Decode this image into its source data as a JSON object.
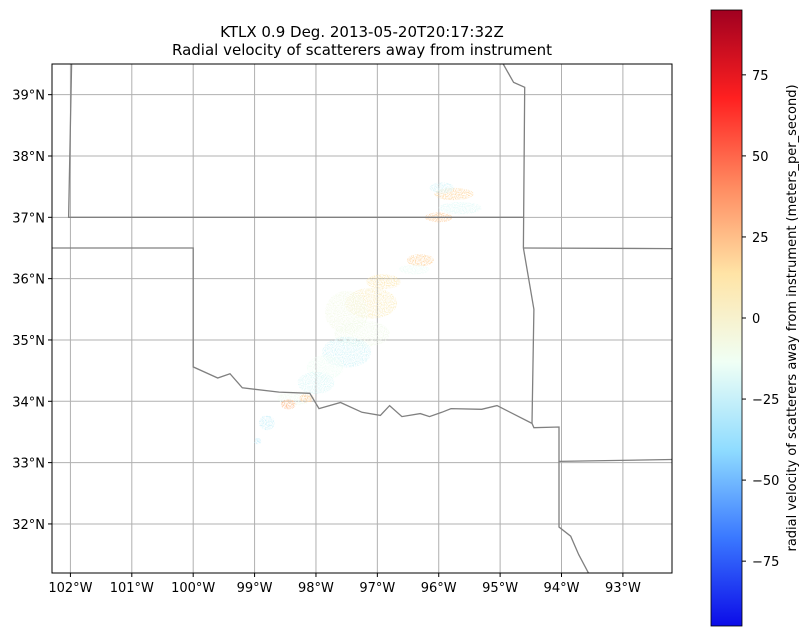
{
  "title": {
    "line1": "KTLX 0.9 Deg. 2013-05-20T20:17:32Z",
    "line2": "Radial velocity of scatterers away from instrument"
  },
  "map": {
    "lon_range": [
      -102.3,
      -92.2
    ],
    "lat_range": [
      31.2,
      39.5
    ],
    "x_ticks": [
      "102°W",
      "101°W",
      "100°W",
      "99°W",
      "98°W",
      "97°W",
      "96°W",
      "95°W",
      "94°W",
      "93°W"
    ],
    "x_tick_values": [
      -102,
      -101,
      -100,
      -99,
      -98,
      -97,
      -96,
      -95,
      -94,
      -93
    ],
    "y_ticks": [
      "32°N",
      "33°N",
      "34°N",
      "35°N",
      "36°N",
      "37°N",
      "38°N",
      "39°N"
    ],
    "y_tick_values": [
      32,
      33,
      34,
      35,
      36,
      37,
      38,
      39
    ],
    "grid": true,
    "border_color": "#808080",
    "grid_color": "#b0b0b0",
    "borders": [
      [
        [
          -101.98,
          39.5
        ],
        [
          -102.03,
          37.0
        ],
        [
          -94.62,
          37.0
        ]
      ],
      [
        [
          -102.3,
          36.5
        ],
        [
          -100.0,
          36.5
        ],
        [
          -100.0,
          34.56
        ],
        [
          -99.6,
          34.38
        ],
        [
          -99.4,
          34.45
        ],
        [
          -99.2,
          34.22
        ],
        [
          -98.6,
          34.15
        ],
        [
          -98.1,
          34.13
        ],
        [
          -97.95,
          33.88
        ],
        [
          -97.6,
          33.98
        ],
        [
          -97.25,
          33.82
        ],
        [
          -96.95,
          33.77
        ],
        [
          -96.8,
          33.93
        ],
        [
          -96.6,
          33.75
        ],
        [
          -96.3,
          33.8
        ],
        [
          -96.15,
          33.75
        ],
        [
          -95.95,
          33.82
        ],
        [
          -95.8,
          33.88
        ],
        [
          -95.3,
          33.87
        ],
        [
          -95.05,
          33.93
        ],
        [
          -94.48,
          33.64
        ],
        [
          -94.45,
          33.57
        ],
        [
          -94.04,
          33.58
        ],
        [
          -94.04,
          33.02
        ],
        [
          -92.2,
          33.05
        ]
      ],
      [
        [
          -94.62,
          36.5
        ],
        [
          -92.2,
          36.49
        ]
      ],
      [
        [
          -94.95,
          39.5
        ],
        [
          -94.78,
          39.2
        ],
        [
          -94.6,
          39.12
        ],
        [
          -94.62,
          36.5
        ],
        [
          -94.45,
          35.5
        ],
        [
          -94.48,
          33.64
        ]
      ],
      [
        [
          -94.04,
          33.02
        ],
        [
          -94.04,
          31.95
        ],
        [
          -93.85,
          31.8
        ],
        [
          -93.72,
          31.5
        ],
        [
          -93.55,
          31.18
        ]
      ]
    ],
    "echoes": [
      {
        "lon": -95.75,
        "lat": 37.38,
        "rx": 0.32,
        "ry": 0.1,
        "v": 18
      },
      {
        "lon": -95.65,
        "lat": 37.15,
        "rx": 0.35,
        "ry": 0.1,
        "v": -18
      },
      {
        "lon": -96.0,
        "lat": 37.0,
        "rx": 0.22,
        "ry": 0.08,
        "v": 22
      },
      {
        "lon": -95.95,
        "lat": 37.48,
        "rx": 0.2,
        "ry": 0.09,
        "v": -22
      },
      {
        "lon": -96.3,
        "lat": 36.3,
        "rx": 0.22,
        "ry": 0.1,
        "v": 20
      },
      {
        "lon": -96.4,
        "lat": 36.15,
        "rx": 0.25,
        "ry": 0.08,
        "v": -15
      },
      {
        "lon": -96.9,
        "lat": 35.95,
        "rx": 0.28,
        "ry": 0.12,
        "v": 10
      },
      {
        "lon": -97.1,
        "lat": 35.6,
        "rx": 0.42,
        "ry": 0.25,
        "v": 6
      },
      {
        "lon": -97.5,
        "lat": 35.45,
        "rx": 0.35,
        "ry": 0.35,
        "v": -8
      },
      {
        "lon": -97.25,
        "lat": 35.1,
        "rx": 0.45,
        "ry": 0.22,
        "v": -10
      },
      {
        "lon": -97.5,
        "lat": 34.8,
        "rx": 0.4,
        "ry": 0.25,
        "v": -22
      },
      {
        "lon": -97.85,
        "lat": 34.55,
        "rx": 0.3,
        "ry": 0.2,
        "v": -14
      },
      {
        "lon": -98.0,
        "lat": 34.3,
        "rx": 0.3,
        "ry": 0.18,
        "v": -20
      },
      {
        "lon": -98.35,
        "lat": 34.05,
        "rx": 0.28,
        "ry": 0.12,
        "v": -12
      },
      {
        "lon": -98.45,
        "lat": 33.95,
        "rx": 0.12,
        "ry": 0.08,
        "v": 28
      },
      {
        "lon": -98.15,
        "lat": 34.05,
        "rx": 0.12,
        "ry": 0.07,
        "v": 22
      },
      {
        "lon": -98.8,
        "lat": 33.65,
        "rx": 0.13,
        "ry": 0.12,
        "v": -25
      },
      {
        "lon": -98.95,
        "lat": 33.35,
        "rx": 0.06,
        "ry": 0.05,
        "v": -30
      }
    ]
  },
  "colorbar": {
    "label": "radial velocity of scatterers away from instrument (meters_per_second)",
    "vmin": -95,
    "vmax": 95,
    "ticks": [
      "75",
      "50",
      "25",
      "0",
      "−25",
      "−50",
      "−75"
    ],
    "tick_values": [
      75,
      50,
      25,
      0,
      -25,
      -50,
      -75
    ],
    "colormap": "jet-like",
    "stops": [
      "#0c0ce8",
      "#3a78ff",
      "#8fdcff",
      "#f0fff5",
      "#ffe4a6",
      "#ff8a60",
      "#ff2020",
      "#a00020"
    ]
  }
}
